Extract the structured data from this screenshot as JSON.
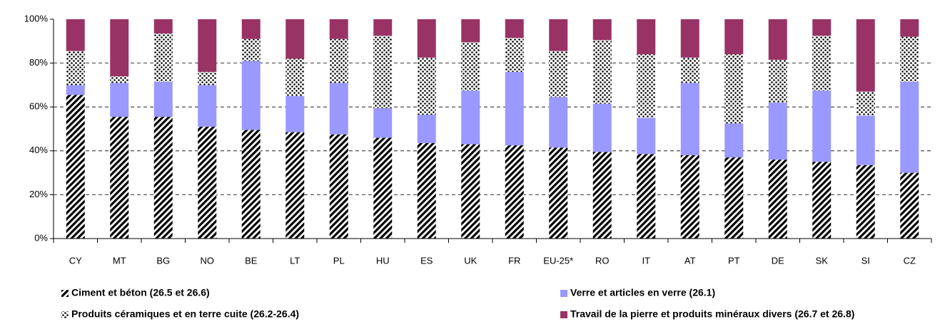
{
  "chart_data": {
    "type": "stacked_bar",
    "categories": [
      "CY",
      "MT",
      "BG",
      "NO",
      "BE",
      "LT",
      "PL",
      "HU",
      "ES",
      "UK",
      "FR",
      "EU-25*",
      "RO",
      "IT",
      "AT",
      "PT",
      "DE",
      "SK",
      "SI",
      "CZ"
    ],
    "series": [
      {
        "name": "Ciment et béton (26.5 et 26.6)",
        "color": "#000000",
        "pattern": "stripes",
        "values": [
          65.5,
          55.5,
          55.5,
          51,
          49.5,
          48.5,
          47.5,
          46,
          43.5,
          43,
          42.5,
          41.5,
          39.5,
          38.5,
          38,
          37,
          36,
          35,
          33.5,
          30
        ]
      },
      {
        "name": "Verre et articles en verre (26.1)",
        "color": "#9999ff",
        "pattern": "solid",
        "values": [
          4.5,
          15.5,
          16,
          19,
          31.5,
          16.5,
          23.5,
          13.5,
          13,
          24.5,
          33.5,
          23,
          22,
          16.5,
          33,
          15.5,
          26,
          32.5,
          22.5,
          41.5
        ]
      },
      {
        "name": "Produits céramiques et en terre cuite (26.2-26.4)",
        "color": "#000000",
        "pattern": "dots",
        "values": [
          15.5,
          3,
          22,
          6,
          10,
          17,
          20,
          33,
          26,
          22,
          15.5,
          21,
          29,
          29,
          11.5,
          31.5,
          19.5,
          25,
          11,
          20.5
        ]
      },
      {
        "name": "Travail de la pierre et produits minéraux divers (26.7 et 26.8)",
        "color": "#993366",
        "pattern": "solid",
        "values": [
          14.5,
          26,
          6.5,
          24,
          9,
          18,
          9,
          7.5,
          17.5,
          10.5,
          8.5,
          14.5,
          9.5,
          16,
          17.5,
          16,
          18.5,
          7.5,
          33,
          8
        ]
      }
    ],
    "ylim": [
      0,
      100
    ],
    "yticks": [
      {
        "value": 0,
        "label": "0%"
      },
      {
        "value": 20,
        "label": "20%"
      },
      {
        "value": 40,
        "label": "40%"
      },
      {
        "value": 60,
        "label": "60%"
      },
      {
        "value": 80,
        "label": "80%"
      },
      {
        "value": 100,
        "label": "100%"
      }
    ],
    "grid": true
  }
}
